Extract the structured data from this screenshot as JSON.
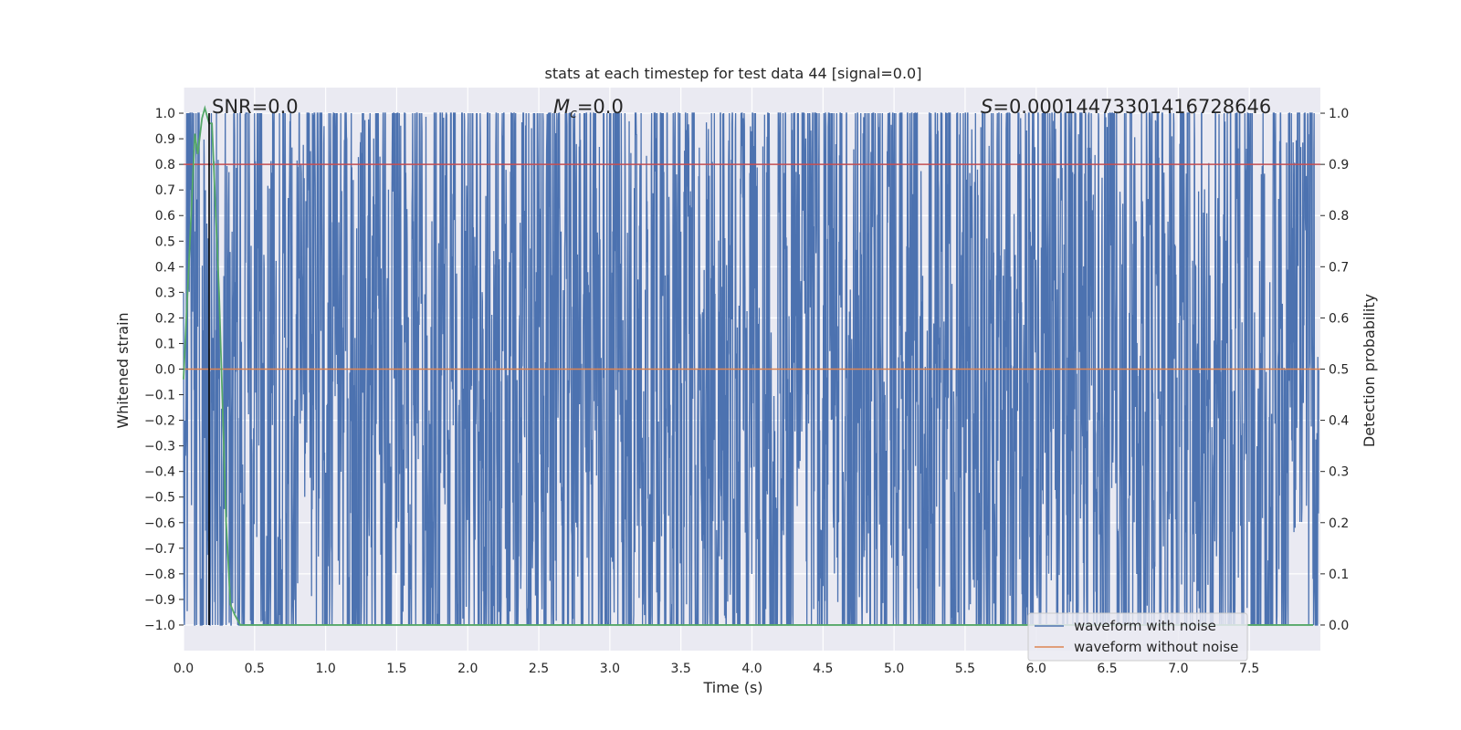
{
  "chart_data": {
    "type": "line",
    "title": "stats at each timestep for test data 44 [signal=0.0]",
    "xlabel": "Time (s)",
    "ylabel": "Whitened strain",
    "ylabel_right": "Detection probability",
    "xlim": [
      0.0,
      8.0
    ],
    "ylim": [
      -1.1,
      1.1
    ],
    "ylim_right": [
      -0.05,
      1.05
    ],
    "x_ticks": [
      "0.0",
      "0.5",
      "1.0",
      "1.5",
      "2.0",
      "2.5",
      "3.0",
      "3.5",
      "4.0",
      "4.5",
      "5.0",
      "5.5",
      "6.0",
      "6.5",
      "7.0",
      "7.5"
    ],
    "y_ticks": [
      "1.0",
      "0.9",
      "0.8",
      "0.7",
      "0.6",
      "0.5",
      "0.4",
      "0.3",
      "0.2",
      "0.1",
      "0.0",
      "−0.1",
      "−0.2",
      "−0.3",
      "−0.4",
      "−0.5",
      "−0.6",
      "−0.7",
      "−0.8",
      "−0.9",
      "−1.0"
    ],
    "y_ticks_right": [
      "1.0",
      "0.9",
      "0.8",
      "0.7",
      "0.6",
      "0.5",
      "0.4",
      "0.3",
      "0.2",
      "0.1",
      "0.0"
    ],
    "annotations": {
      "snr_label": "SNR=0.0",
      "mc_symbol": "M",
      "mc_subscript": "c",
      "mc_value": "=0.0",
      "s_symbol": "S",
      "s_value": "=0.00014473301416728646"
    },
    "series": [
      {
        "name": "waveform with noise",
        "color": "#4c72b0",
        "description": "dense noise, clipped to [-1, 1]"
      },
      {
        "name": "waveform without noise",
        "color": "#dd8452",
        "values": "flat at 0.0"
      },
      {
        "name": "detection probability",
        "color": "#55a868",
        "axis": "right",
        "x": [
          0.0,
          0.05,
          0.08,
          0.1,
          0.13,
          0.15,
          0.18,
          0.2,
          0.25,
          0.3,
          0.33,
          0.36,
          0.4,
          7.95
        ],
        "values": [
          0.48,
          0.78,
          0.96,
          0.92,
          0.99,
          1.01,
          0.98,
          0.98,
          0.65,
          0.2,
          0.04,
          0.02,
          0.0,
          0.0
        ]
      }
    ],
    "threshold_line": {
      "axis": "right",
      "value": 0.9,
      "color": "#c44e52"
    },
    "vertical_marker": {
      "x": 0.18,
      "color": "#000000"
    },
    "legend_position": "bottom-right",
    "grid": true,
    "colors": {
      "background": "#eaeaf2",
      "grid": "#ffffff",
      "noise": "#4c72b0",
      "clean": "#dd8452",
      "prob": "#55a868",
      "threshold": "#c44e52"
    }
  }
}
